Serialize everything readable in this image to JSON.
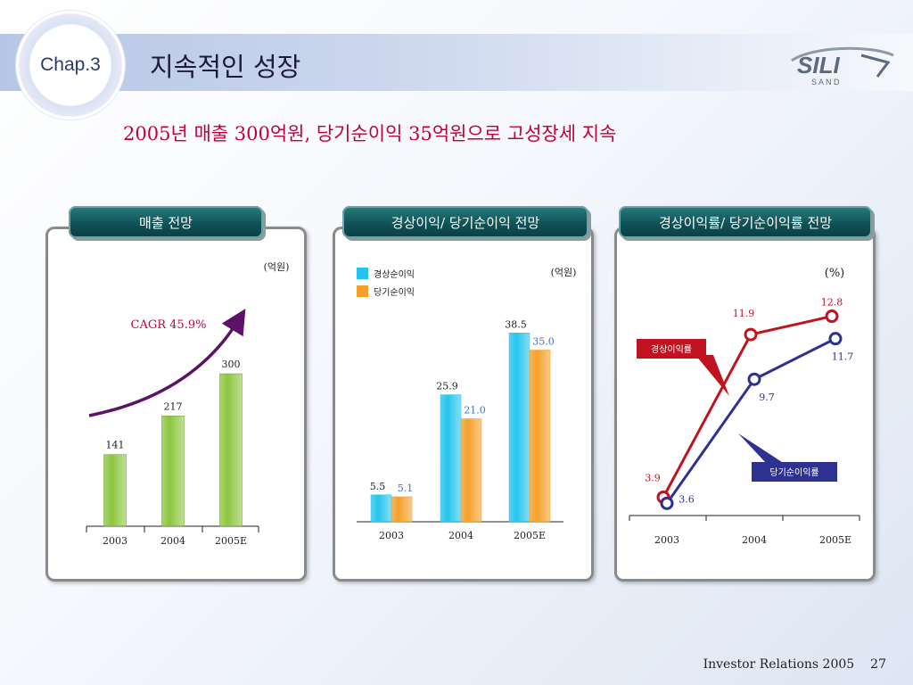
{
  "header": {
    "chapter": "Chap.3",
    "title": "지속적인 성장",
    "logo_top": "SILI",
    "logo_bottom": "S A N D"
  },
  "headline": "2005년 매출 300억원, 당기순이익 35억원으로 고성장세 지속",
  "footer": {
    "text": "Investor Relations 2005",
    "page": "27"
  },
  "colors": {
    "revenue_bar": "#8cc63f",
    "ordinary_bar": "#25c4ee",
    "net_bar": "#f5a02a",
    "ordinary_line": "#c1121f",
    "net_line": "#2e3192",
    "cagr_arrow": "#5c1266",
    "tab": "#0f5257",
    "headline": "#c4003a"
  },
  "chart_data": [
    {
      "type": "bar",
      "title": "매출 전망",
      "unit": "(억원)",
      "categories": [
        "2003",
        "2004",
        "2005E"
      ],
      "values": [
        141,
        217,
        300
      ],
      "annotation": "CAGR 45.9%"
    },
    {
      "type": "bar",
      "title": "경상이익/ 당기순이익 전망",
      "unit": "(억원)",
      "categories": [
        "2003",
        "2004",
        "2005E"
      ],
      "series": [
        {
          "name": "경상순이익",
          "values": [
            5.5,
            25.9,
            38.5
          ]
        },
        {
          "name": "당기순이익",
          "values": [
            5.1,
            21.0,
            35.0
          ]
        }
      ]
    },
    {
      "type": "line",
      "title": "경상이익률/ 당기순이익률 전망",
      "unit": "(%)",
      "categories": [
        "2003",
        "2004",
        "2005E"
      ],
      "series": [
        {
          "name": "경상이익률",
          "values": [
            3.9,
            11.9,
            12.8
          ]
        },
        {
          "name": "당기순이익률",
          "values": [
            3.6,
            9.7,
            11.7
          ]
        }
      ]
    }
  ]
}
